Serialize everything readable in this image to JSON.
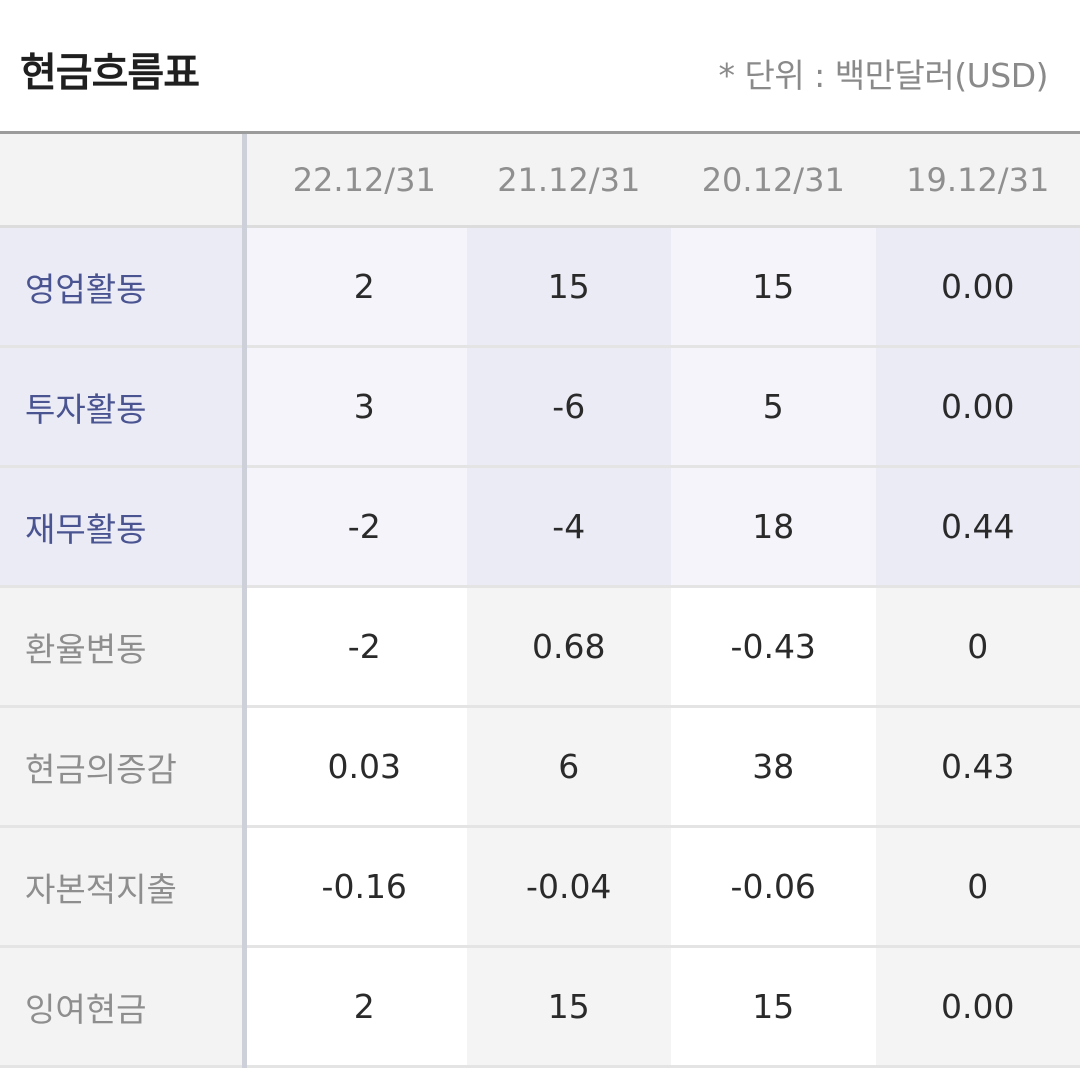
{
  "header": {
    "title": "현금흐름표",
    "unit_note": "* 단위 : 백만달러(USD)"
  },
  "table": {
    "columns": [
      "22.12/31",
      "21.12/31",
      "20.12/31",
      "19.12/31"
    ],
    "rows": [
      {
        "label": "영업활동",
        "highlight": true,
        "values": [
          "2",
          "15",
          "15",
          "0.00"
        ]
      },
      {
        "label": "투자활동",
        "highlight": true,
        "values": [
          "3",
          "-6",
          "5",
          "0.00"
        ]
      },
      {
        "label": "재무활동",
        "highlight": true,
        "values": [
          "-2",
          "-4",
          "18",
          "0.44"
        ]
      },
      {
        "label": "환율변동",
        "highlight": false,
        "values": [
          "-2",
          "0.68",
          "-0.43",
          "0"
        ]
      },
      {
        "label": "현금의증감",
        "highlight": false,
        "values": [
          "0.03",
          "6",
          "38",
          "0.43"
        ]
      },
      {
        "label": "자본적지출",
        "highlight": false,
        "values": [
          "-0.16",
          "-0.04",
          "-0.06",
          "0"
        ]
      },
      {
        "label": "잉여현금",
        "highlight": false,
        "values": [
          "2",
          "15",
          "15",
          "0.00"
        ]
      }
    ]
  },
  "colors": {
    "highlight_label": "#4a5491",
    "highlight_bg": "#ebebf6",
    "muted_label": "#8e8e8e",
    "header_text": "#8f8f8f"
  }
}
